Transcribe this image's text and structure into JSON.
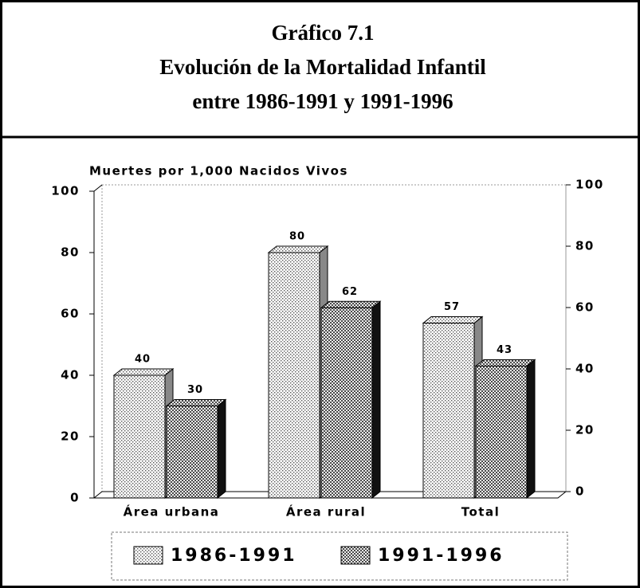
{
  "chart_data": {
    "type": "bar",
    "title": [
      "Gráfico 7.1",
      "Evolución de la Mortalidad Infantil",
      "entre 1986-1991 y 1991-1996"
    ],
    "y_label": "Muertes por 1,000 Nacidos Vivos",
    "categories": [
      "Área urbana",
      "Área rural",
      "Total"
    ],
    "series": [
      {
        "name": "1986-1991",
        "color": "#d4d4d4",
        "values": [
          40,
          80,
          57
        ]
      },
      {
        "name": "1991-1996",
        "color": "#4a4a4a",
        "values": [
          30,
          62,
          43
        ]
      }
    ],
    "ylim": [
      0,
      100
    ],
    "yticks": [
      0,
      20,
      40,
      60,
      80,
      100
    ],
    "y2lim": [
      0,
      100
    ],
    "y2ticks": [
      0,
      20,
      40,
      60,
      80,
      100
    ],
    "grid": false,
    "legend": "bottom",
    "data_labels": true
  }
}
